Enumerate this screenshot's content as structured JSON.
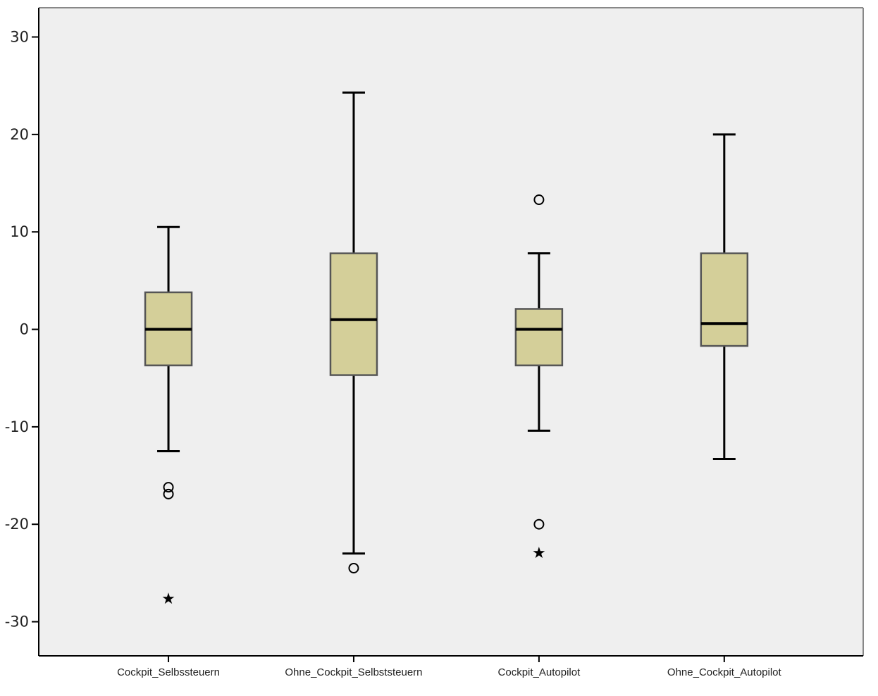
{
  "chart_data": {
    "type": "box",
    "title": "",
    "xlabel": "",
    "ylabel": "",
    "ylim": [
      -33.5,
      33
    ],
    "y_ticks": [
      30,
      20,
      10,
      0,
      -10,
      -20,
      -30
    ],
    "y_tick_labels": [
      "30",
      "20",
      "10",
      "0",
      "-10",
      "-20",
      "-30"
    ],
    "grid": false,
    "legend": "none",
    "colors": {
      "plot_background": "#efefef",
      "box_fill": "#d4cf99",
      "box_stroke": "#555555",
      "ink": "#000000"
    },
    "categories": [
      "Cockpit_Selbssteuern",
      "Ohne_Cockpit_Selbststeuern",
      "Cockpit_Autopilot",
      "Ohne_Cockpit_Autopilot"
    ],
    "boxes": [
      {
        "category": "Cockpit_Selbssteuern",
        "whisker_low": -12.5,
        "q1": -3.7,
        "median": 0,
        "q3": 3.8,
        "whisker_high": 10.5,
        "outliers": [
          -16.2,
          -16.9
        ],
        "extremes": [
          -27.5
        ]
      },
      {
        "category": "Ohne_Cockpit_Selbststeuern",
        "whisker_low": -23,
        "q1": -4.7,
        "median": 1.0,
        "q3": 7.8,
        "whisker_high": 24.3,
        "outliers": [
          -24.5
        ],
        "extremes": []
      },
      {
        "category": "Cockpit_Autopilot",
        "whisker_low": -10.4,
        "q1": -3.7,
        "median": 0,
        "q3": 2.1,
        "whisker_high": 7.8,
        "outliers": [
          13.3,
          -20
        ],
        "extremes": [
          -22.8
        ]
      },
      {
        "category": "Ohne_Cockpit_Autopilot",
        "whisker_low": -13.3,
        "q1": -1.7,
        "median": 0.6,
        "q3": 7.8,
        "whisker_high": 20,
        "outliers": [],
        "extremes": []
      }
    ]
  }
}
